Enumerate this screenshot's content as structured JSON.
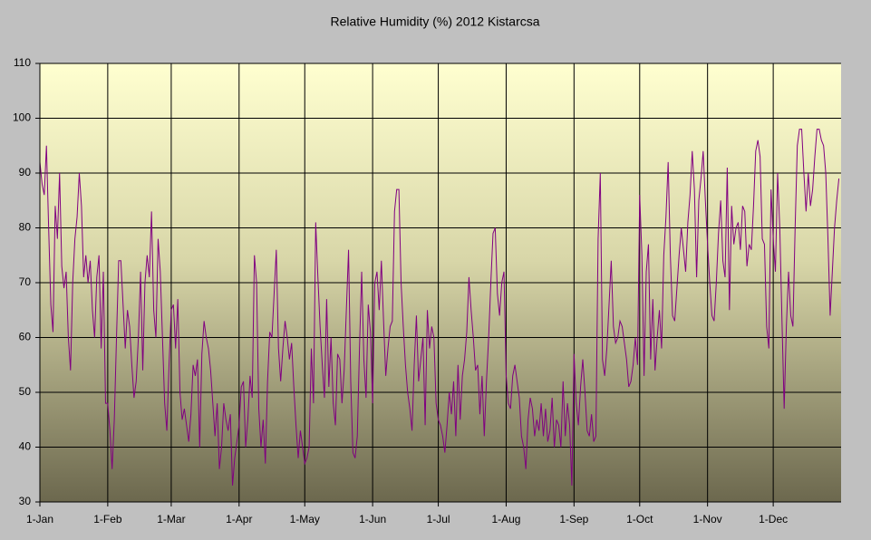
{
  "chart_data": {
    "type": "line",
    "title": "Relative Humidity (%) 2012 Kistarcsa",
    "series": [
      {
        "name": "Relative Humidity",
        "color": "#800080",
        "values": [
          92,
          88,
          86,
          95,
          80,
          66,
          61,
          84,
          78,
          90,
          73,
          69,
          72,
          60,
          54,
          70,
          78,
          82,
          90,
          84,
          71,
          75,
          70,
          74,
          65,
          60,
          71,
          75,
          58,
          72,
          48,
          48,
          43,
          36,
          45,
          60,
          74,
          74,
          66,
          58,
          65,
          62,
          55,
          49,
          52,
          60,
          72,
          54,
          70,
          75,
          71,
          83,
          65,
          60,
          78,
          72,
          60,
          48,
          43,
          55,
          65,
          66,
          58,
          67,
          50,
          45,
          47,
          44,
          41,
          46,
          55,
          53,
          56,
          40,
          57,
          63,
          60,
          58,
          54,
          48,
          42,
          48,
          36,
          40,
          48,
          45,
          43,
          46,
          33,
          38,
          41,
          44,
          51,
          52,
          40,
          45,
          53,
          49,
          75,
          70,
          47,
          40,
          45,
          37,
          52,
          61,
          60,
          68,
          76,
          58,
          52,
          58,
          63,
          60,
          56,
          59,
          51,
          44,
          38,
          43,
          40,
          37,
          38,
          40,
          58,
          48,
          81,
          71,
          62,
          55,
          49,
          67,
          51,
          60,
          48,
          44,
          57,
          56,
          48,
          54,
          65,
          76,
          52,
          39,
          38,
          42,
          58,
          72,
          56,
          49,
          66,
          61,
          48,
          70,
          72,
          65,
          74,
          63,
          53,
          58,
          62,
          63,
          83,
          87,
          87,
          70,
          62,
          55,
          50,
          47,
          43,
          55,
          64,
          52,
          56,
          60,
          44,
          65,
          58,
          62,
          60,
          48,
          45,
          44,
          42,
          39,
          44,
          50,
          46,
          52,
          42,
          55,
          45,
          53,
          56,
          61,
          71,
          65,
          60,
          54,
          55,
          46,
          53,
          42,
          52,
          60,
          70,
          79,
          80,
          68,
          64,
          70,
          72,
          53,
          48,
          47,
          53,
          55,
          52,
          49,
          42,
          40,
          36,
          45,
          49,
          47,
          42,
          45,
          43,
          48,
          42,
          47,
          41,
          43,
          49,
          40,
          45,
          44,
          40,
          52,
          42,
          48,
          44,
          33,
          57,
          48,
          44,
          51,
          56,
          50,
          43,
          42,
          46,
          41,
          42,
          78,
          90,
          56,
          53,
          58,
          66,
          74,
          62,
          59,
          60,
          63,
          62,
          59,
          56,
          51,
          52,
          55,
          60,
          55,
          86,
          75,
          53,
          72,
          77,
          56,
          67,
          54,
          60,
          65,
          58,
          75,
          82,
          92,
          75,
          64,
          63,
          69,
          75,
          80,
          76,
          72,
          81,
          86,
          94,
          87,
          71,
          85,
          89,
          94,
          85,
          77,
          70,
          64,
          63,
          70,
          79,
          85,
          74,
          71,
          91,
          65,
          84,
          77,
          80,
          81,
          76,
          84,
          83,
          73,
          77,
          76,
          84,
          94,
          96,
          93,
          78,
          77,
          62,
          58,
          87,
          78,
          72,
          90,
          80,
          63,
          47,
          62,
          72,
          64,
          62,
          80,
          95,
          98,
          98,
          90,
          83,
          90,
          84,
          87,
          93,
          98,
          98,
          96,
          95,
          90,
          78,
          64,
          72,
          80,
          85,
          89
        ]
      }
    ],
    "xlim": [
      0,
      366
    ],
    "xticks": [
      {
        "value": 0,
        "label": "1-Jan"
      },
      {
        "value": 31,
        "label": "1-Feb"
      },
      {
        "value": 60,
        "label": "1-Mar"
      },
      {
        "value": 91,
        "label": "1-Apr"
      },
      {
        "value": 121,
        "label": "1-May"
      },
      {
        "value": 152,
        "label": "1-Jun"
      },
      {
        "value": 182,
        "label": "1-Jul"
      },
      {
        "value": 213,
        "label": "1-Aug"
      },
      {
        "value": 244,
        "label": "1-Sep"
      },
      {
        "value": 274,
        "label": "1-Oct"
      },
      {
        "value": 305,
        "label": "1-Nov"
      },
      {
        "value": 335,
        "label": "1-Dec"
      }
    ],
    "ylim": [
      30,
      110
    ],
    "yticks": [
      30,
      40,
      50,
      60,
      70,
      80,
      90,
      100,
      110
    ],
    "grid": true
  }
}
